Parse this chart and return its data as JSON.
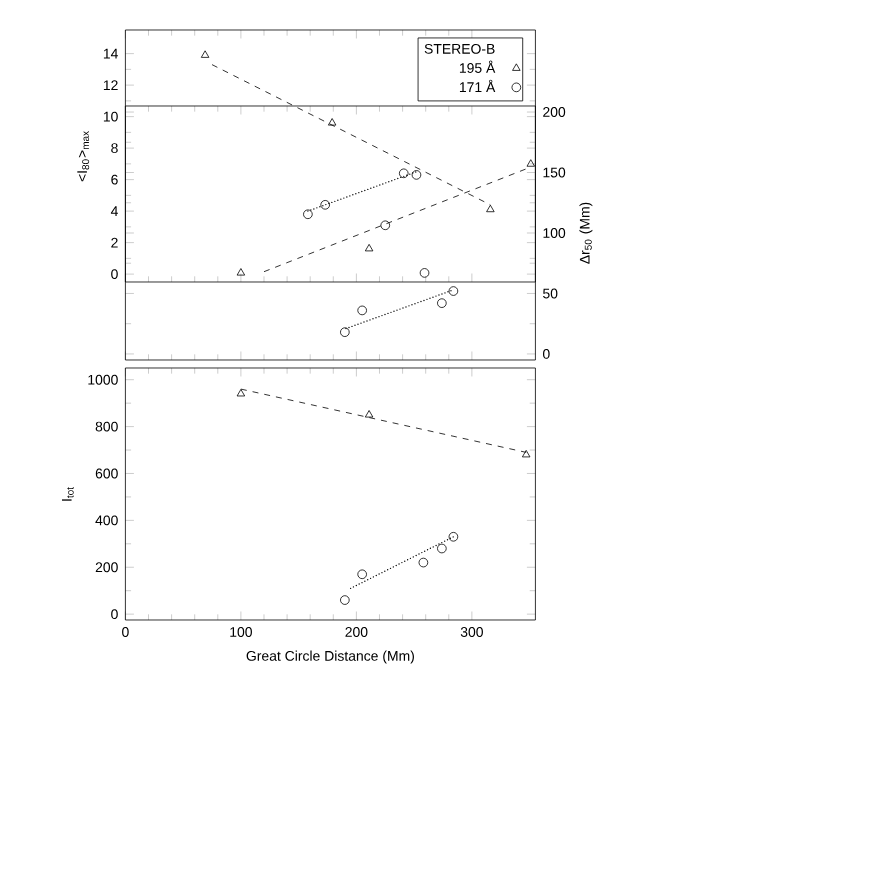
{
  "chart_data": [
    {
      "type": "scatter",
      "ylabel": "<I$_{80}$>$_{max}$",
      "legend": "top right",
      "legend_title": "STEREO-B",
      "xlim": [
        0,
        355
      ],
      "xticks": [
        0,
        100,
        200,
        300
      ],
      "ylim": [
        -0.5,
        15.5
      ],
      "yticks": [
        0,
        2,
        4,
        6,
        8,
        10,
        12,
        14
      ],
      "tick_labels": "y",
      "series": [
        {
          "name": "195 Å",
          "marker": "triangle",
          "color": "#000000",
          "x": [
            69,
            179,
            316
          ],
          "values": [
            13.9,
            9.6,
            4.1
          ]
        },
        {
          "name": "171 Å",
          "marker": "circle",
          "color": "#000000",
          "x": [
            158,
            173,
            225,
            241,
            252
          ],
          "values": [
            3.8,
            4.4,
            3.1,
            6.4,
            6.3
          ]
        },
        {
          "type": "line",
          "line_style": "dashed",
          "color": "#000000",
          "x": [
            75,
            316
          ],
          "values": [
            13.3,
            4.4
          ]
        },
        {
          "type": "line",
          "line_style": "dotted",
          "color": "#000000",
          "x": [
            158,
            252
          ],
          "values": [
            4.0,
            6.5
          ]
        }
      ]
    },
    {
      "type": "scatter",
      "ylabel": "Δr$_{50}$ (Mm)",
      "xlim": [
        0,
        355
      ],
      "xticks": [
        0,
        100,
        200,
        300
      ],
      "ylim": [
        -5,
        205
      ],
      "yticks": [
        0,
        50,
        100,
        150,
        200
      ],
      "tick_labels": "y",
      "series": [
        {
          "marker": "triangle",
          "color": "#000000",
          "x": [
            100,
            211,
            351
          ],
          "values": [
            67,
            87,
            157
          ]
        },
        {
          "marker": "circle",
          "color": "#000000",
          "x": [
            190,
            205,
            259,
            274,
            284
          ],
          "values": [
            18,
            36,
            67,
            42,
            52
          ]
        },
        {
          "type": "line",
          "line_style": "dashed",
          "color": "#000000",
          "x": [
            120,
            347
          ],
          "values": [
            68,
            153
          ]
        },
        {
          "type": "line",
          "line_style": "dotted",
          "color": "#000000",
          "x": [
            191,
            284
          ],
          "values": [
            21,
            53
          ]
        }
      ]
    },
    {
      "type": "scatter",
      "ylabel": "I$_{tot}$",
      "xlabel": "Great Circle Distance (Mm)",
      "xlim": [
        0,
        355
      ],
      "xticks": [
        0,
        100,
        200,
        300
      ],
      "ylim": [
        -25,
        1050
      ],
      "yticks": [
        0,
        200,
        400,
        600,
        800,
        1000
      ],
      "series": [
        {
          "marker": "triangle",
          "color": "#000000",
          "x": [
            100,
            211,
            347
          ],
          "values": [
            940,
            850,
            680
          ]
        },
        {
          "marker": "circle",
          "color": "#000000",
          "x": [
            190,
            205,
            258,
            274,
            284
          ],
          "values": [
            60,
            170,
            220,
            280,
            330
          ]
        },
        {
          "type": "line",
          "line_style": "dashed",
          "color": "#000000",
          "x": [
            100,
            347
          ],
          "values": [
            960,
            690
          ]
        },
        {
          "type": "line",
          "line_style": "dotted",
          "color": "#000000",
          "x": [
            195,
            284
          ],
          "values": [
            110,
            330
          ]
        }
      ]
    }
  ]
}
